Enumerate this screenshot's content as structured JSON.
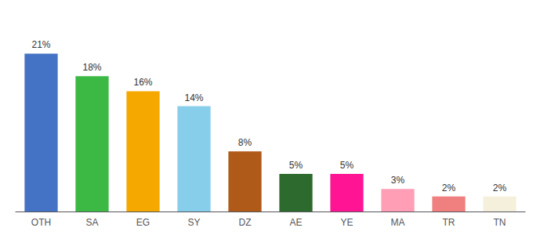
{
  "chart_data": {
    "type": "bar",
    "categories": [
      "OTH",
      "SA",
      "EG",
      "SY",
      "DZ",
      "AE",
      "YE",
      "MA",
      "TR",
      "TN"
    ],
    "values": [
      21,
      18,
      16,
      14,
      8,
      5,
      5,
      3,
      2,
      2
    ],
    "value_labels": [
      "21%",
      "18%",
      "16%",
      "14%",
      "8%",
      "5%",
      "5%",
      "3%",
      "2%",
      "2%"
    ],
    "colors": [
      "#4472c4",
      "#3cb844",
      "#f5a800",
      "#87ceeb",
      "#b05a1a",
      "#2d6a2d",
      "#ff1493",
      "#ff9eb5",
      "#f08080",
      "#f5f0dc"
    ],
    "ylim": [
      0,
      25
    ],
    "data_labels": true,
    "tick_labels": "x",
    "grid": false
  }
}
